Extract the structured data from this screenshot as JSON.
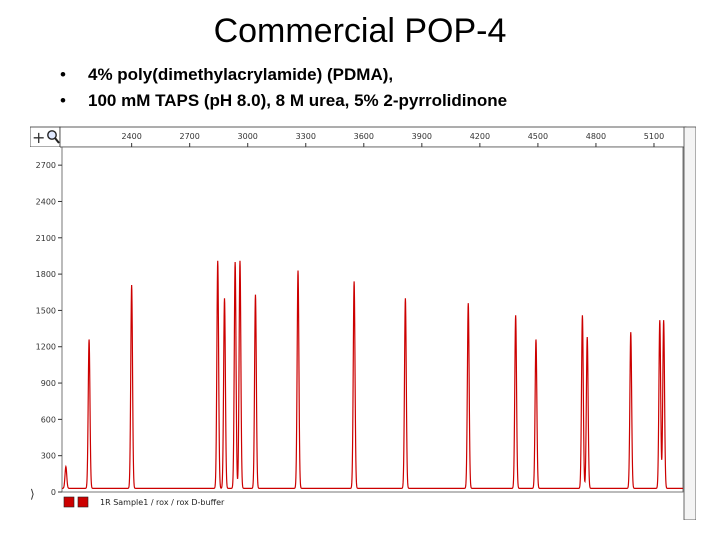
{
  "slide": {
    "title": "Commercial POP-4",
    "bullets": [
      "4% poly(dimethylacrylamide) (PDMA),",
      "100 mM TAPS (pH 8.0), 8 M urea, 5% 2-pyrrolidinone"
    ]
  },
  "toolbar": {
    "plus_glyph": "+",
    "zoom_icon": "magnifier-icon"
  },
  "chart_data": {
    "type": "line",
    "title": "",
    "xlabel": "",
    "ylabel": "",
    "xlim": [
      2040,
      5250
    ],
    "ylim": [
      0,
      2850
    ],
    "x_ticks": [
      2400,
      2700,
      3000,
      3300,
      3600,
      3900,
      4200,
      4500,
      4800,
      5100
    ],
    "x_tick_labels": [
      "2400",
      "2700",
      "3000",
      "3300",
      "3600",
      "3900",
      "4200",
      "4500",
      "4800",
      "5100"
    ],
    "y_ticks": [
      0,
      300,
      600,
      900,
      1200,
      1500,
      1800,
      2100,
      2400,
      2700
    ],
    "y_tick_labels": [
      "0",
      "300",
      "600",
      "900",
      "1200",
      "1500",
      "1800",
      "2100",
      "2400",
      "2700"
    ],
    "grid": false,
    "line_color": "#cc0000",
    "legend_placement": "bottom-left",
    "legend_text": "1R  Sample1 / rox / rox D-buffer",
    "series": [
      {
        "baseline": 30,
        "peaks": [
          {
            "x": 2060,
            "height": 180
          },
          {
            "x": 2180,
            "height": 1230
          },
          {
            "x": 2400,
            "height": 1680
          },
          {
            "x": 2845,
            "height": 1880
          },
          {
            "x": 2880,
            "height": 1570
          },
          {
            "x": 2935,
            "height": 1870
          },
          {
            "x": 2960,
            "height": 1880
          },
          {
            "x": 3040,
            "height": 1600
          },
          {
            "x": 3260,
            "height": 1800
          },
          {
            "x": 3550,
            "height": 1710
          },
          {
            "x": 3815,
            "height": 1570
          },
          {
            "x": 4140,
            "height": 1530
          },
          {
            "x": 4385,
            "height": 1430
          },
          {
            "x": 4490,
            "height": 1230
          },
          {
            "x": 4730,
            "height": 1430
          },
          {
            "x": 4755,
            "height": 1250
          },
          {
            "x": 4980,
            "height": 1290
          },
          {
            "x": 5130,
            "height": 1390
          },
          {
            "x": 5150,
            "height": 1390
          }
        ]
      }
    ]
  }
}
